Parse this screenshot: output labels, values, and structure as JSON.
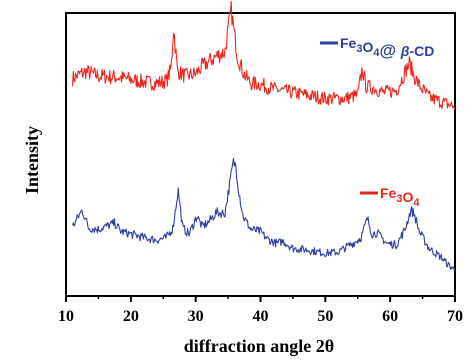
{
  "chart_data": {
    "type": "line",
    "xlabel": "diffraction angle 2θ",
    "ylabel": "Intensity",
    "xlim": [
      10,
      70
    ],
    "x_ticks": [
      "10",
      "20",
      "30",
      "40",
      "50",
      "60",
      "70"
    ],
    "y_ticks_labeled": false,
    "grid": false,
    "legend_placement": "beside each series (right)",
    "series": [
      {
        "name": "Fe3O4@β-CD",
        "legend_parts": [
          "Fe",
          "3",
          "O",
          "4",
          "@ ",
          "β",
          "-CD"
        ],
        "color": "#2e3f9e",
        "offset": 1.0,
        "x": [
          11,
          12.5,
          13.5,
          15,
          17.5,
          18.5,
          20,
          22,
          24,
          25.5,
          26.5,
          27.3,
          28,
          29,
          30.2,
          31,
          32,
          33.2,
          34.5,
          35.2,
          35.8,
          36.2,
          36.6,
          37.3,
          38.5,
          40,
          41,
          42.5,
          43.5,
          45,
          47,
          48,
          50,
          52,
          53.5,
          54.5,
          55.5,
          56.5,
          57.2,
          58,
          59.5,
          61,
          62.3,
          63.2,
          63.7,
          64.5,
          66,
          68,
          69,
          70
        ],
        "y": [
          0.46,
          0.6,
          0.45,
          0.44,
          0.49,
          0.42,
          0.4,
          0.37,
          0.35,
          0.37,
          0.45,
          0.77,
          0.45,
          0.4,
          0.55,
          0.46,
          0.5,
          0.58,
          0.57,
          0.8,
          1.0,
          0.97,
          0.78,
          0.55,
          0.44,
          0.42,
          0.36,
          0.32,
          0.34,
          0.28,
          0.27,
          0.26,
          0.24,
          0.25,
          0.3,
          0.33,
          0.37,
          0.53,
          0.4,
          0.41,
          0.32,
          0.31,
          0.44,
          0.6,
          0.57,
          0.42,
          0.28,
          0.2,
          0.14,
          0.1
        ]
      },
      {
        "name": "Fe3O4",
        "legend_parts": [
          "Fe",
          "3",
          "O",
          "4"
        ],
        "color": "#e8281c",
        "offset": 0.0,
        "x": [
          11,
          13,
          15,
          18,
          20,
          22,
          24,
          25.5,
          26.2,
          26.6,
          27.2,
          28.5,
          30,
          31,
          32,
          33.5,
          34.5,
          35.2,
          35.5,
          36,
          36.5,
          37.5,
          38.5,
          40,
          42,
          44,
          47,
          50,
          53,
          55,
          55.7,
          56.3,
          57.5,
          59,
          61,
          62.5,
          63,
          63.6,
          64.5,
          66,
          68,
          70
        ],
        "y": [
          0.42,
          0.48,
          0.44,
          0.43,
          0.41,
          0.39,
          0.38,
          0.4,
          0.5,
          0.85,
          0.48,
          0.44,
          0.46,
          0.52,
          0.56,
          0.62,
          0.64,
          0.9,
          1.0,
          0.78,
          0.6,
          0.45,
          0.38,
          0.37,
          0.33,
          0.31,
          0.28,
          0.25,
          0.25,
          0.28,
          0.5,
          0.35,
          0.34,
          0.3,
          0.32,
          0.5,
          0.55,
          0.45,
          0.36,
          0.26,
          0.22,
          0.18
        ]
      }
    ]
  }
}
